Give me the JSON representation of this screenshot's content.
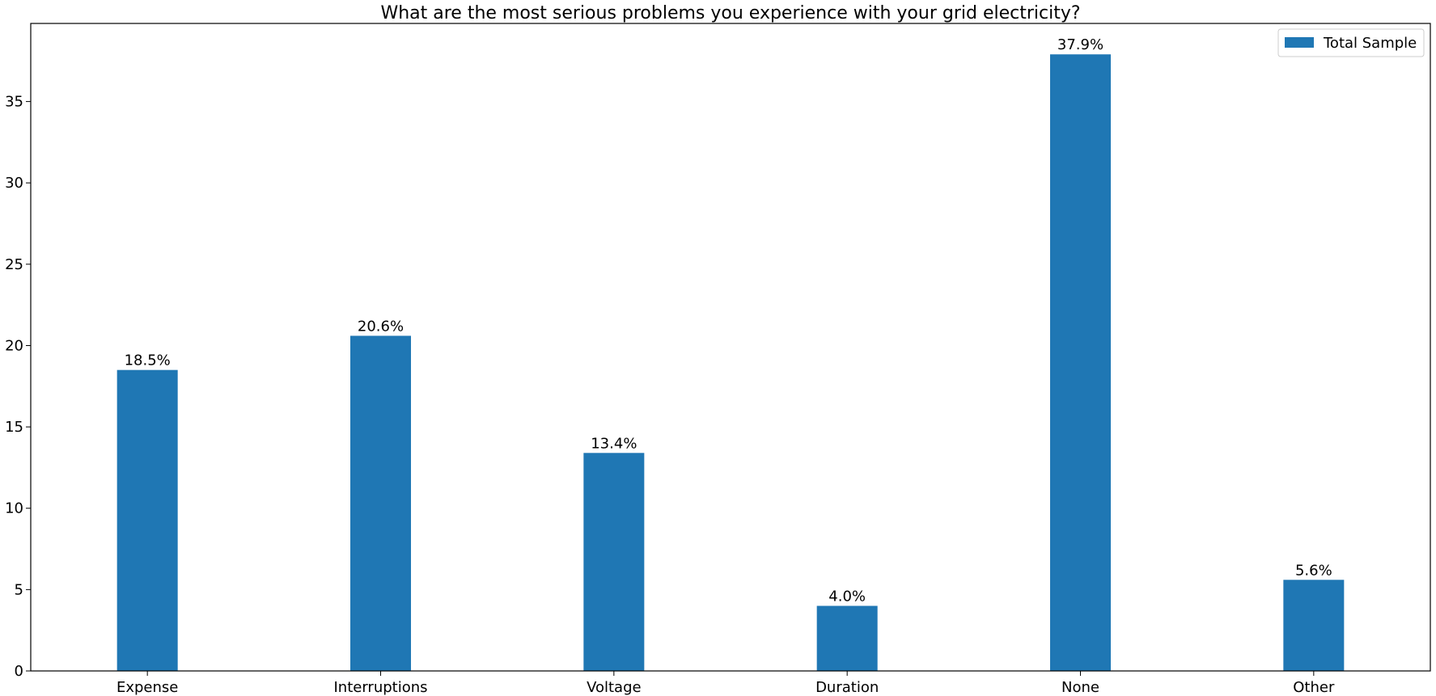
{
  "chart_data": {
    "type": "bar",
    "title": "What are the most serious problems you experience with your grid electricity?",
    "xlabel": "",
    "ylabel": "",
    "categories": [
      "Expense",
      "Interruptions",
      "Voltage",
      "Duration",
      "None",
      "Other"
    ],
    "series": [
      {
        "name": "Total Sample",
        "color": "#1f77b4",
        "values": [
          18.5,
          20.6,
          13.4,
          4.0,
          37.9,
          5.6
        ],
        "labels": [
          "18.5%",
          "20.6%",
          "13.4%",
          "4.0%",
          "37.9%",
          "5.6%"
        ]
      }
    ],
    "ylim": [
      0,
      39.8
    ],
    "yticks": [
      0,
      5,
      10,
      15,
      20,
      25,
      30,
      35
    ],
    "grid": false,
    "legend_position": "top-right"
  }
}
